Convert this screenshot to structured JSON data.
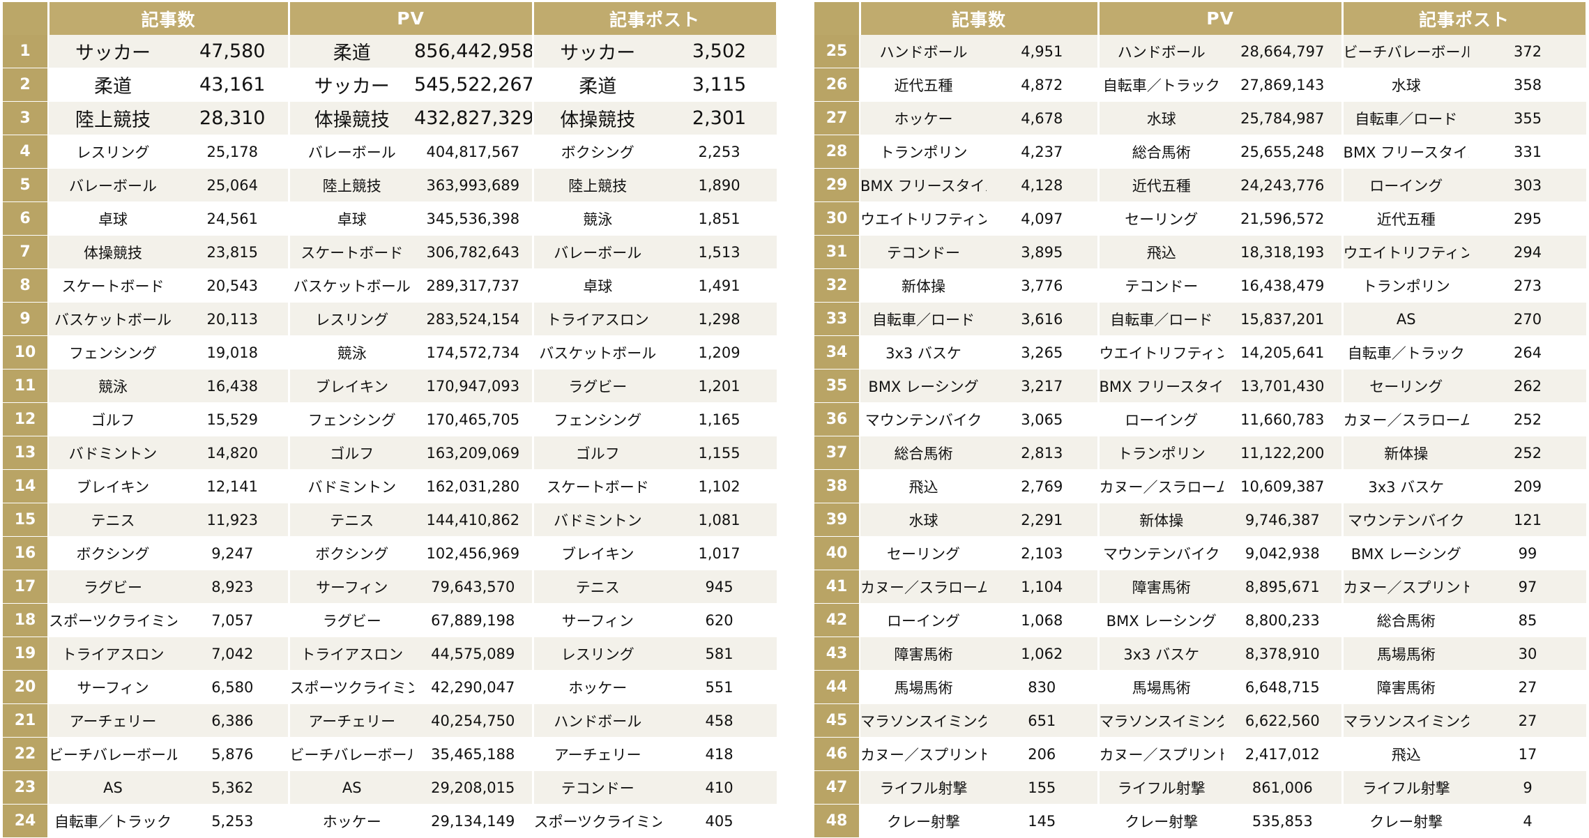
{
  "headers": {
    "articles": "記事数",
    "pv": "PV",
    "posts": "記事ポスト"
  },
  "left_rows": [
    {
      "rank": "1",
      "a_name": "サッカー",
      "a_val": "47,580",
      "p_name": "柔道",
      "p_val": "856,442,958",
      "s_name": "サッカー",
      "s_val": "3,502"
    },
    {
      "rank": "2",
      "a_name": "柔道",
      "a_val": "43,161",
      "p_name": "サッカー",
      "p_val": "545,522,267",
      "s_name": "柔道",
      "s_val": "3,115"
    },
    {
      "rank": "3",
      "a_name": "陸上競技",
      "a_val": "28,310",
      "p_name": "体操競技",
      "p_val": "432,827,329",
      "s_name": "体操競技",
      "s_val": "2,301"
    },
    {
      "rank": "4",
      "a_name": "レスリング",
      "a_val": "25,178",
      "p_name": "バレーボール",
      "p_val": "404,817,567",
      "s_name": "ボクシング",
      "s_val": "2,253"
    },
    {
      "rank": "5",
      "a_name": "バレーボール",
      "a_val": "25,064",
      "p_name": "陸上競技",
      "p_val": "363,993,689",
      "s_name": "陸上競技",
      "s_val": "1,890"
    },
    {
      "rank": "6",
      "a_name": "卓球",
      "a_val": "24,561",
      "p_name": "卓球",
      "p_val": "345,536,398",
      "s_name": "競泳",
      "s_val": "1,851"
    },
    {
      "rank": "7",
      "a_name": "体操競技",
      "a_val": "23,815",
      "p_name": "スケートボード",
      "p_val": "306,782,643",
      "s_name": "バレーボール",
      "s_val": "1,513"
    },
    {
      "rank": "8",
      "a_name": "スケートボード",
      "a_val": "20,543",
      "p_name": "バスケットボール",
      "p_val": "289,317,737",
      "s_name": "卓球",
      "s_val": "1,491"
    },
    {
      "rank": "9",
      "a_name": "バスケットボール",
      "a_val": "20,113",
      "p_name": "レスリング",
      "p_val": "283,524,154",
      "s_name": "トライアスロン",
      "s_val": "1,298"
    },
    {
      "rank": "10",
      "a_name": "フェンシング",
      "a_val": "19,018",
      "p_name": "競泳",
      "p_val": "174,572,734",
      "s_name": "バスケットボール",
      "s_val": "1,209"
    },
    {
      "rank": "11",
      "a_name": "競泳",
      "a_val": "16,438",
      "p_name": "ブレイキン",
      "p_val": "170,947,093",
      "s_name": "ラグビー",
      "s_val": "1,201"
    },
    {
      "rank": "12",
      "a_name": "ゴルフ",
      "a_val": "15,529",
      "p_name": "フェンシング",
      "p_val": "170,465,705",
      "s_name": "フェンシング",
      "s_val": "1,165"
    },
    {
      "rank": "13",
      "a_name": "バドミントン",
      "a_val": "14,820",
      "p_name": "ゴルフ",
      "p_val": "163,209,069",
      "s_name": "ゴルフ",
      "s_val": "1,155"
    },
    {
      "rank": "14",
      "a_name": "ブレイキン",
      "a_val": "12,141",
      "p_name": "バドミントン",
      "p_val": "162,031,280",
      "s_name": "スケートボード",
      "s_val": "1,102"
    },
    {
      "rank": "15",
      "a_name": "テニス",
      "a_val": "11,923",
      "p_name": "テニス",
      "p_val": "144,410,862",
      "s_name": "バドミントン",
      "s_val": "1,081"
    },
    {
      "rank": "16",
      "a_name": "ボクシング",
      "a_val": "9,247",
      "p_name": "ボクシング",
      "p_val": "102,456,969",
      "s_name": "ブレイキン",
      "s_val": "1,017"
    },
    {
      "rank": "17",
      "a_name": "ラグビー",
      "a_val": "8,923",
      "p_name": "サーフィン",
      "p_val": "79,643,570",
      "s_name": "テニス",
      "s_val": "945"
    },
    {
      "rank": "18",
      "a_name": "スポーツクライミング",
      "a_val": "7,057",
      "p_name": "ラグビー",
      "p_val": "67,889,198",
      "s_name": "サーフィン",
      "s_val": "620"
    },
    {
      "rank": "19",
      "a_name": "トライアスロン",
      "a_val": "7,042",
      "p_name": "トライアスロン",
      "p_val": "44,575,089",
      "s_name": "レスリング",
      "s_val": "581"
    },
    {
      "rank": "20",
      "a_name": "サーフィン",
      "a_val": "6,580",
      "p_name": "スポーツクライミング",
      "p_val": "42,290,047",
      "s_name": "ホッケー",
      "s_val": "551"
    },
    {
      "rank": "21",
      "a_name": "アーチェリー",
      "a_val": "6,386",
      "p_name": "アーチェリー",
      "p_val": "40,254,750",
      "s_name": "ハンドボール",
      "s_val": "458"
    },
    {
      "rank": "22",
      "a_name": "ビーチバレーボール",
      "a_val": "5,876",
      "p_name": "ビーチバレーボール",
      "p_val": "35,465,188",
      "s_name": "アーチェリー",
      "s_val": "418"
    },
    {
      "rank": "23",
      "a_name": "AS",
      "a_val": "5,362",
      "p_name": "AS",
      "p_val": "29,208,015",
      "s_name": "テコンドー",
      "s_val": "410"
    },
    {
      "rank": "24",
      "a_name": "自転車／トラック",
      "a_val": "5,253",
      "p_name": "ホッケー",
      "p_val": "29,134,149",
      "s_name": "スポーツクライミング",
      "s_val": "405"
    }
  ],
  "right_rows": [
    {
      "rank": "25",
      "a_name": "ハンドボール",
      "a_val": "4,951",
      "p_name": "ハンドボール",
      "p_val": "28,664,797",
      "s_name": "ビーチバレーボール",
      "s_val": "372"
    },
    {
      "rank": "26",
      "a_name": "近代五種",
      "a_val": "4,872",
      "p_name": "自転車／トラック",
      "p_val": "27,869,143",
      "s_name": "水球",
      "s_val": "358"
    },
    {
      "rank": "27",
      "a_name": "ホッケー",
      "a_val": "4,678",
      "p_name": "水球",
      "p_val": "25,784,987",
      "s_name": "自転車／ロード",
      "s_val": "355"
    },
    {
      "rank": "28",
      "a_name": "トランポリン",
      "a_val": "4,237",
      "p_name": "総合馬術",
      "p_val": "25,655,248",
      "s_name": "BMX フリースタイル",
      "s_val": "331"
    },
    {
      "rank": "29",
      "a_name": "BMX フリースタイル",
      "a_val": "4,128",
      "p_name": "近代五種",
      "p_val": "24,243,776",
      "s_name": "ローイング",
      "s_val": "303"
    },
    {
      "rank": "30",
      "a_name": "ウエイトリフティング",
      "a_val": "4,097",
      "p_name": "セーリング",
      "p_val": "21,596,572",
      "s_name": "近代五種",
      "s_val": "295"
    },
    {
      "rank": "31",
      "a_name": "テコンドー",
      "a_val": "3,895",
      "p_name": "飛込",
      "p_val": "18,318,193",
      "s_name": "ウエイトリフティング",
      "s_val": "294"
    },
    {
      "rank": "32",
      "a_name": "新体操",
      "a_val": "3,776",
      "p_name": "テコンドー",
      "p_val": "16,438,479",
      "s_name": "トランポリン",
      "s_val": "273"
    },
    {
      "rank": "33",
      "a_name": "自転車／ロード",
      "a_val": "3,616",
      "p_name": "自転車／ロード",
      "p_val": "15,837,201",
      "s_name": "AS",
      "s_val": "270"
    },
    {
      "rank": "34",
      "a_name": "3x3 バスケ",
      "a_val": "3,265",
      "p_name": "ウエイトリフティング",
      "p_val": "14,205,641",
      "s_name": "自転車／トラック",
      "s_val": "264"
    },
    {
      "rank": "35",
      "a_name": "BMX レーシング",
      "a_val": "3,217",
      "p_name": "BMX フリースタイル",
      "p_val": "13,701,430",
      "s_name": "セーリング",
      "s_val": "262"
    },
    {
      "rank": "36",
      "a_name": "マウンテンバイク",
      "a_val": "3,065",
      "p_name": "ローイング",
      "p_val": "11,660,783",
      "s_name": "カヌー／スラローム",
      "s_val": "252"
    },
    {
      "rank": "37",
      "a_name": "総合馬術",
      "a_val": "2,813",
      "p_name": "トランポリン",
      "p_val": "11,122,200",
      "s_name": "新体操",
      "s_val": "252"
    },
    {
      "rank": "38",
      "a_name": "飛込",
      "a_val": "2,769",
      "p_name": "カヌー／スラローム",
      "p_val": "10,609,387",
      "s_name": "3x3 バスケ",
      "s_val": "209"
    },
    {
      "rank": "39",
      "a_name": "水球",
      "a_val": "2,291",
      "p_name": "新体操",
      "p_val": "9,746,387",
      "s_name": "マウンテンバイク",
      "s_val": "121"
    },
    {
      "rank": "40",
      "a_name": "セーリング",
      "a_val": "2,103",
      "p_name": "マウンテンバイク",
      "p_val": "9,042,938",
      "s_name": "BMX レーシング",
      "s_val": "99"
    },
    {
      "rank": "41",
      "a_name": "カヌー／スラローム",
      "a_val": "1,104",
      "p_name": "障害馬術",
      "p_val": "8,895,671",
      "s_name": "カヌー／スプリント",
      "s_val": "97"
    },
    {
      "rank": "42",
      "a_name": "ローイング",
      "a_val": "1,068",
      "p_name": "BMX レーシング",
      "p_val": "8,800,233",
      "s_name": "総合馬術",
      "s_val": "85"
    },
    {
      "rank": "43",
      "a_name": "障害馬術",
      "a_val": "1,062",
      "p_name": "3x3 バスケ",
      "p_val": "8,378,910",
      "s_name": "馬場馬術",
      "s_val": "30"
    },
    {
      "rank": "44",
      "a_name": "馬場馬術",
      "a_val": "830",
      "p_name": "馬場馬術",
      "p_val": "6,648,715",
      "s_name": "障害馬術",
      "s_val": "27"
    },
    {
      "rank": "45",
      "a_name": "マラソンスイミング",
      "a_val": "651",
      "p_name": "マラソンスイミング",
      "p_val": "6,622,560",
      "s_name": "マラソンスイミング",
      "s_val": "27"
    },
    {
      "rank": "46",
      "a_name": "カヌー／スプリント",
      "a_val": "206",
      "p_name": "カヌー／スプリント",
      "p_val": "2,417,012",
      "s_name": "飛込",
      "s_val": "17"
    },
    {
      "rank": "47",
      "a_name": "ライフル射撃",
      "a_val": "155",
      "p_name": "ライフル射撃",
      "p_val": "861,006",
      "s_name": "ライフル射撃",
      "s_val": "9"
    },
    {
      "rank": "48",
      "a_name": "クレー射撃",
      "a_val": "145",
      "p_name": "クレー射撃",
      "p_val": "535,853",
      "s_name": "クレー射撃",
      "s_val": "4"
    }
  ],
  "colors": {
    "header_gold": "#c0ab6e",
    "rank_gold": "#b9a465",
    "row_stripe": "#f3f1ea"
  }
}
